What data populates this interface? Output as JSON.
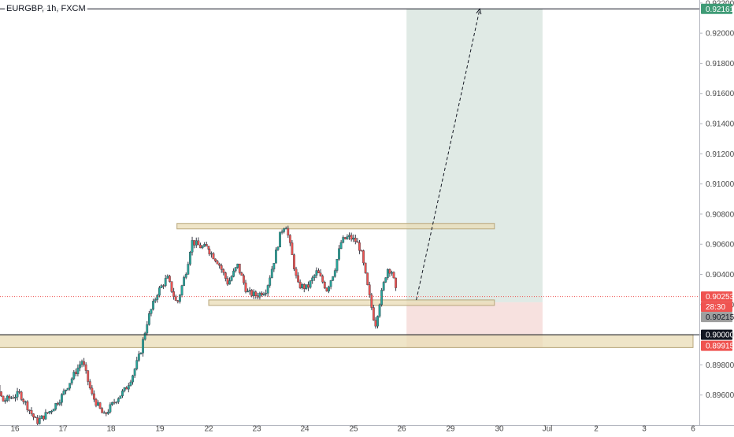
{
  "symbol_title": "EURGBP, 1h, FXCM",
  "colors": {
    "up": "#26a69a",
    "down": "#ef5350",
    "candle_body": "#3a3e49",
    "zone_fill": "#eadcb5",
    "zone_border": "#b8a77c",
    "target_fill": "#dde8e2",
    "stop_fill": "#f6dedc",
    "target_badge": "#3f9b76",
    "stop_badge": "#ef5350",
    "level_badge": "#131722",
    "price_line": "#ef5350",
    "axis_text": "#4a4a4a"
  },
  "chart_data": {
    "type": "candlestick",
    "title": "EURGBP, 1h, FXCM",
    "ylim": [
      0.894,
      0.9222
    ],
    "y_ticks": [
      "0.89400",
      "0.89600",
      "0.89800",
      "0.90000",
      "0.90200",
      "0.90400",
      "0.90600",
      "0.90800",
      "0.91000",
      "0.91200",
      "0.91400",
      "0.91600",
      "0.91800",
      "0.92000",
      "0.92200"
    ],
    "x_ticks": [
      "16",
      "17",
      "18",
      "19",
      "22",
      "23",
      "24",
      "25",
      "26",
      "29",
      "30",
      "Jul",
      "2",
      "3",
      "6"
    ],
    "badges": [
      {
        "label": "0.92161",
        "price": 0.92161,
        "kind": "target"
      },
      {
        "label": "0.90253",
        "price": 0.90253,
        "kind": "price"
      },
      {
        "label": "28:30",
        "price": 0.9023,
        "kind": "countdown"
      },
      {
        "label": "0.90215",
        "price": 0.90215,
        "kind": "entry"
      },
      {
        "label": "0.90000",
        "price": 0.9,
        "kind": "level"
      },
      {
        "label": "0.89915",
        "price": 0.89915,
        "kind": "stop"
      }
    ],
    "zones": [
      {
        "name": "resistance-zone",
        "from_day": 19.35,
        "to_day": 29.9,
        "low": 0.9071,
        "high": 0.9073
      },
      {
        "name": "entry-zone",
        "from_day": 21.9,
        "to_day": 29.9,
        "low": 0.902,
        "high": 0.90225
      },
      {
        "name": "support-zone",
        "from_day": 15.0,
        "to_day": 35.6,
        "low": 0.89915,
        "high": 0.9
      }
    ],
    "position": {
      "from_day": 26.1,
      "to_day": 30.9,
      "entry": 0.90215,
      "target": 0.92161,
      "stop": 0.89915
    },
    "projection": {
      "from_day": 26.3,
      "from_price": 0.9023,
      "to_day": 29.6,
      "to_price": 0.92161
    },
    "candle_anchors": [
      {
        "day": 15.0,
        "price": 0.8995
      },
      {
        "day": 15.2,
        "price": 0.8992
      },
      {
        "day": 15.45,
        "price": 0.8978
      },
      {
        "day": 15.75,
        "price": 0.8956
      },
      {
        "day": 16.1,
        "price": 0.8961
      },
      {
        "day": 16.45,
        "price": 0.8942
      },
      {
        "day": 16.75,
        "price": 0.895
      },
      {
        "day": 16.95,
        "price": 0.8958
      },
      {
        "day": 17.2,
        "price": 0.8972
      },
      {
        "day": 17.4,
        "price": 0.8983
      },
      {
        "day": 17.6,
        "price": 0.896
      },
      {
        "day": 17.85,
        "price": 0.8946
      },
      {
        "day": 18.1,
        "price": 0.8957
      },
      {
        "day": 18.3,
        "price": 0.8964
      },
      {
        "day": 18.45,
        "price": 0.8974
      },
      {
        "day": 18.6,
        "price": 0.8988
      },
      {
        "day": 18.75,
        "price": 0.901
      },
      {
        "day": 18.95,
        "price": 0.9028
      },
      {
        "day": 19.15,
        "price": 0.9038
      },
      {
        "day": 19.35,
        "price": 0.902
      },
      {
        "day": 19.55,
        "price": 0.9044
      },
      {
        "day": 19.65,
        "price": 0.9062
      },
      {
        "day": 19.85,
        "price": 0.9058
      },
      {
        "day": 22.0,
        "price": 0.9056
      },
      {
        "day": 22.2,
        "price": 0.9048
      },
      {
        "day": 22.4,
        "price": 0.9034
      },
      {
        "day": 22.6,
        "price": 0.9046
      },
      {
        "day": 22.8,
        "price": 0.9028
      },
      {
        "day": 23.0,
        "price": 0.9026
      },
      {
        "day": 23.2,
        "price": 0.903
      },
      {
        "day": 23.35,
        "price": 0.9048
      },
      {
        "day": 23.5,
        "price": 0.9068
      },
      {
        "day": 23.6,
        "price": 0.9074
      },
      {
        "day": 23.75,
        "price": 0.905
      },
      {
        "day": 23.85,
        "price": 0.9033
      },
      {
        "day": 24.05,
        "price": 0.9031
      },
      {
        "day": 24.25,
        "price": 0.9042
      },
      {
        "day": 24.45,
        "price": 0.903
      },
      {
        "day": 24.6,
        "price": 0.9042
      },
      {
        "day": 24.75,
        "price": 0.9062
      },
      {
        "day": 24.9,
        "price": 0.9065
      },
      {
        "day": 25.05,
        "price": 0.9062
      },
      {
        "day": 25.15,
        "price": 0.9056
      },
      {
        "day": 25.3,
        "price": 0.903
      },
      {
        "day": 25.45,
        "price": 0.9006
      },
      {
        "day": 25.55,
        "price": 0.9023
      },
      {
        "day": 25.7,
        "price": 0.9044
      },
      {
        "day": 25.8,
        "price": 0.9042
      },
      {
        "day": 25.9,
        "price": 0.90253
      }
    ]
  }
}
